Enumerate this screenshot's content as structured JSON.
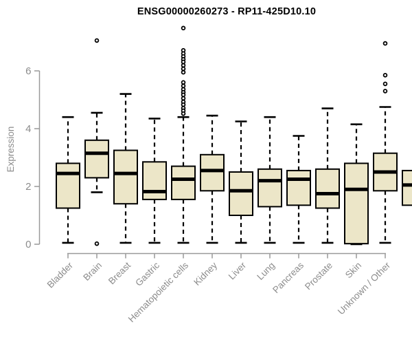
{
  "colors": {
    "box_fill": "#ECE6C8",
    "box_stroke": "#000000",
    "median": "#000000",
    "axis": "#999999",
    "text_muted": "#8C8C8C",
    "title": "#000000",
    "background": "#FFFFFF"
  },
  "chart_data": {
    "type": "boxplot",
    "title": "ENSG00000260273 - RP11-425D10.10",
    "xlabel": "",
    "ylabel": "Expression",
    "ylim": [
      0,
      7.6
    ],
    "yticks": [
      0,
      2,
      4,
      6
    ],
    "grid": false,
    "categories": [
      "Bladder",
      "Brain",
      "Breast",
      "Gastric",
      "Hematopoietic cells",
      "Kidney",
      "Liver",
      "Lung",
      "Pancreas",
      "Prostate",
      "Skin",
      "Unknown / Other"
    ],
    "series": [
      {
        "name": "Bladder",
        "low": 0.05,
        "q1": 1.25,
        "median": 2.45,
        "q3": 2.8,
        "high": 4.4,
        "outliers": []
      },
      {
        "name": "Brain",
        "low": 1.8,
        "q1": 2.3,
        "median": 3.15,
        "q3": 3.6,
        "high": 4.55,
        "outliers": [
          7.05,
          0.02
        ]
      },
      {
        "name": "Breast",
        "low": 0.05,
        "q1": 1.4,
        "median": 2.45,
        "q3": 3.25,
        "high": 5.2,
        "outliers": []
      },
      {
        "name": "Gastric",
        "low": 0.05,
        "q1": 1.55,
        "median": 1.82,
        "q3": 2.85,
        "high": 4.35,
        "outliers": []
      },
      {
        "name": "Hematopoietic cells",
        "low": 0.05,
        "q1": 1.55,
        "median": 2.25,
        "q3": 2.7,
        "high": 4.4,
        "outliers": [
          7.48,
          6.71,
          6.6,
          6.5,
          6.4,
          6.31,
          6.19,
          6.07,
          5.95,
          5.6,
          5.48,
          5.36,
          5.26,
          5.17,
          5.05,
          4.93,
          4.83,
          4.71,
          4.62,
          4.52
        ]
      },
      {
        "name": "Kidney",
        "low": 0.05,
        "q1": 1.85,
        "median": 2.55,
        "q3": 3.1,
        "high": 4.45,
        "outliers": []
      },
      {
        "name": "Liver",
        "low": 0.05,
        "q1": 1.0,
        "median": 1.85,
        "q3": 2.5,
        "high": 4.25,
        "outliers": []
      },
      {
        "name": "Lung",
        "low": 0.05,
        "q1": 1.3,
        "median": 2.2,
        "q3": 2.6,
        "high": 4.4,
        "outliers": []
      },
      {
        "name": "Pancreas",
        "low": 0.05,
        "q1": 1.35,
        "median": 2.25,
        "q3": 2.55,
        "high": 3.75,
        "outliers": []
      },
      {
        "name": "Prostate",
        "low": 0.05,
        "q1": 1.25,
        "median": 1.75,
        "q3": 2.6,
        "high": 4.7,
        "outliers": []
      },
      {
        "name": "Skin",
        "low": 0.0,
        "q1": 0.02,
        "median": 1.9,
        "q3": 2.8,
        "high": 4.15,
        "outliers": []
      },
      {
        "name": "Unknown / Other",
        "low": 0.05,
        "q1": 1.85,
        "median": 2.5,
        "q3": 3.15,
        "high": 4.75,
        "outliers": [
          6.95,
          5.85,
          5.55,
          5.3
        ]
      }
    ],
    "cropped_box_at_right_edge": {
      "q1": 1.35,
      "median": 2.05,
      "q3": 2.55
    }
  }
}
